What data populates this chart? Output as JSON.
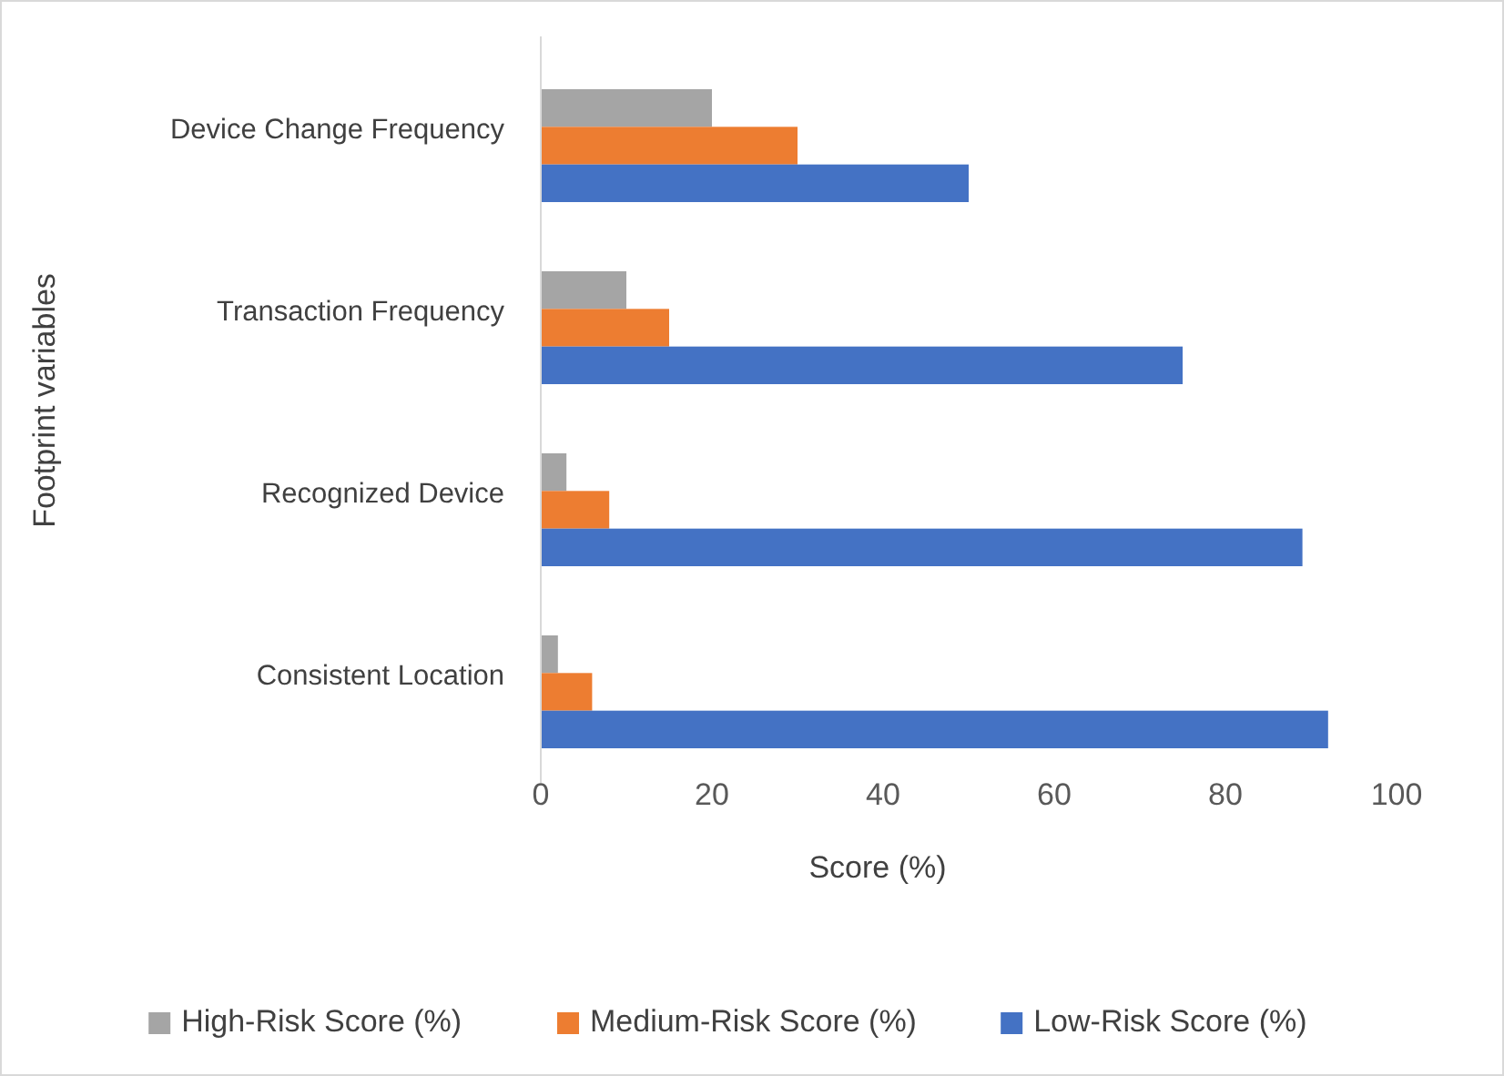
{
  "chart_data": {
    "type": "bar",
    "orientation": "horizontal",
    "xlabel": "Score (%)",
    "ylabel": "Footprint variables",
    "categories": [
      "Device Change Frequency",
      "Transaction Frequency",
      "Recognized Device",
      "Consistent Location"
    ],
    "series": [
      {
        "name": "High-Risk Score (%)",
        "color": "#a5a5a5",
        "values": [
          20,
          10,
          3,
          2
        ]
      },
      {
        "name": "Medium-Risk Score (%)",
        "color": "#ed7d31",
        "values": [
          30,
          15,
          8,
          6
        ]
      },
      {
        "name": "Low-Risk Score (%)",
        "color": "#4472c4",
        "values": [
          50,
          75,
          89,
          92
        ]
      }
    ],
    "xlim": [
      0,
      100
    ],
    "xticks": [
      0,
      20,
      40,
      60,
      80,
      100
    ],
    "grid": false,
    "legend": "bottom"
  }
}
